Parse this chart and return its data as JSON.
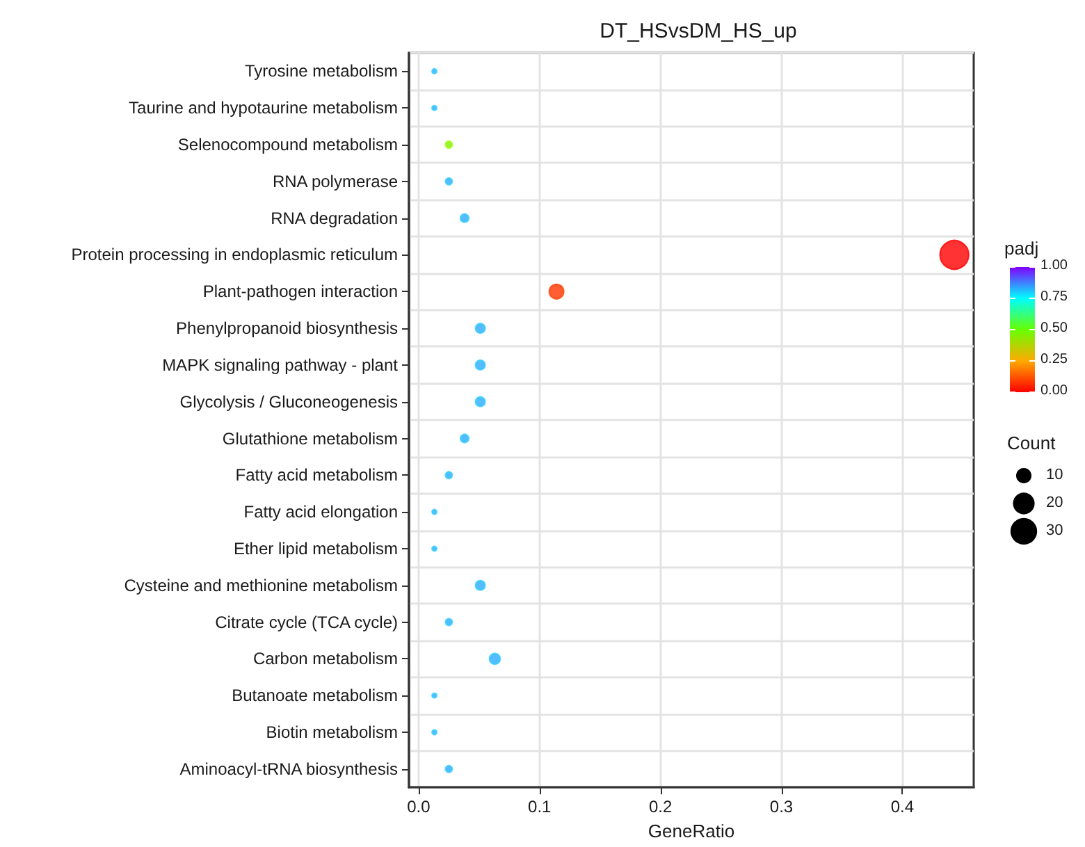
{
  "chart_data": {
    "type": "bubble",
    "title": "DT_HSvsDM_HS_up",
    "xlabel": "GeneRatio",
    "clabel": "padj",
    "legend_title": "Count",
    "orientation": "horizontal",
    "categories": [
      "Tyrosine metabolism",
      "Taurine and hypotaurine metabolism",
      "Selenocompound metabolism",
      "RNA polymerase",
      "RNA degradation",
      "Protein processing in endoplasmic reticulum",
      "Plant-pathogen interaction",
      "Phenylpropanoid biosynthesis",
      "MAPK signaling pathway - plant",
      "Glycolysis / Gluconeogenesis",
      "Glutathione metabolism",
      "Fatty acid metabolism",
      "Fatty acid elongation",
      "Ether lipid metabolism",
      "Cysteine and methionine metabolism",
      "Citrate cycle (TCA cycle)",
      "Carbon metabolism",
      "Butanoate metabolism",
      "Biotin metabolism",
      "Aminoacyl-tRNA biosynthesis"
    ],
    "values": [
      0.013,
      0.013,
      0.025,
      0.025,
      0.038,
      0.443,
      0.114,
      0.051,
      0.051,
      0.051,
      0.038,
      0.025,
      0.013,
      0.013,
      0.051,
      0.025,
      0.063,
      0.013,
      0.013,
      0.025
    ],
    "sizes": [
      1,
      1,
      2,
      2,
      3,
      35,
      9,
      4,
      4,
      4,
      3,
      2,
      1,
      1,
      4,
      2,
      5,
      1,
      1,
      2
    ],
    "cvalues": [
      0.83,
      0.83,
      0.45,
      0.83,
      0.83,
      0.0,
      0.08,
      0.83,
      0.83,
      0.83,
      0.83,
      0.83,
      0.83,
      0.83,
      0.83,
      0.83,
      0.83,
      0.83,
      0.83,
      0.83
    ],
    "size_legend": [
      10,
      20,
      30
    ],
    "clim": [
      0,
      1
    ],
    "cticks": [
      {
        "value": 0,
        "label": "0.00"
      },
      {
        "value": 0.25,
        "label": "0.25"
      },
      {
        "value": 0.5,
        "label": "0.50"
      },
      {
        "value": 0.75,
        "label": "0.75"
      },
      {
        "value": 1,
        "label": "1.00"
      }
    ],
    "xlim": [
      -0.008,
      0.459
    ],
    "xticks": [
      {
        "value": 0,
        "label": "0.0"
      },
      0.1,
      0.2,
      0.3,
      0.4
    ],
    "grid": true,
    "marker": "circle"
  }
}
